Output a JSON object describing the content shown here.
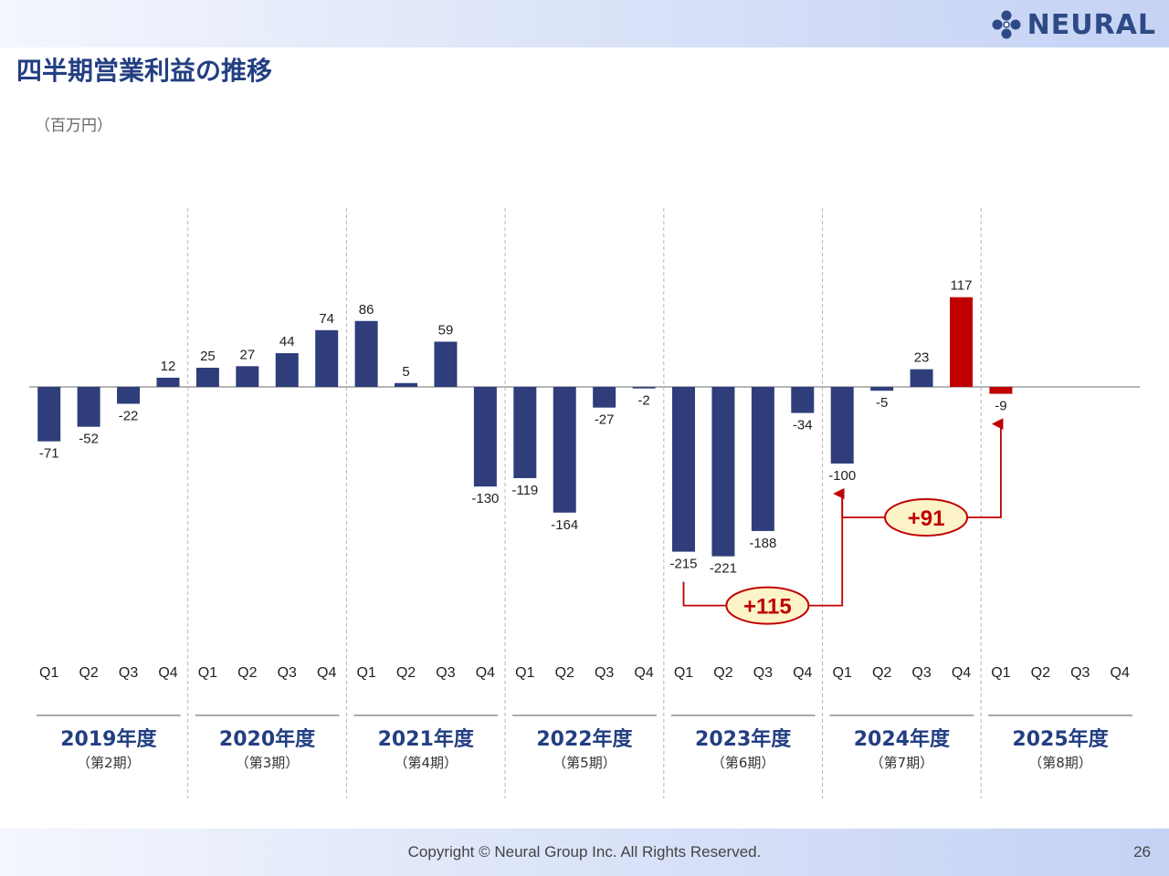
{
  "slide": {
    "title": "四半期営業利益の推移",
    "unit": "（百万円）",
    "logo_text": "NEURAL",
    "copyright": "Copyright © Neural Group Inc. All Rights Reserved.",
    "page_number": "26"
  },
  "colors": {
    "bar_default": "#2f3e7a",
    "bar_highlight": "#c00000",
    "title": "#233f82",
    "year_label": "#233f82",
    "callout_fill": "#fdf3c8",
    "callout_text": "#c00000",
    "callout_line": "#c00000"
  },
  "chart_data": {
    "type": "bar",
    "ylim": [
      -221,
      117
    ],
    "grid": false,
    "legend": "none",
    "quarter_labels": [
      "Q1",
      "Q2",
      "Q3",
      "Q4"
    ],
    "groups": [
      {
        "year": "2019年度",
        "period": "（第2期）",
        "values": [
          -71,
          -52,
          -22,
          12
        ],
        "highlight": []
      },
      {
        "year": "2020年度",
        "period": "（第3期）",
        "values": [
          25,
          27,
          44,
          74
        ],
        "highlight": []
      },
      {
        "year": "2021年度",
        "period": "（第4期）",
        "values": [
          86,
          5,
          59,
          -130
        ],
        "highlight": []
      },
      {
        "year": "2022年度",
        "period": "（第5期）",
        "values": [
          -119,
          -164,
          -27,
          -2
        ],
        "highlight": []
      },
      {
        "year": "2023年度",
        "period": "（第6期）",
        "values": [
          -215,
          -221,
          -188,
          -34
        ],
        "highlight": []
      },
      {
        "year": "2024年度",
        "period": "（第7期）",
        "values": [
          -100,
          -5,
          23,
          117
        ],
        "highlight": [
          3
        ]
      },
      {
        "year": "2025年度",
        "period": "（第8期）",
        "values": [
          -9,
          null,
          null,
          null
        ],
        "highlight": [
          0
        ]
      }
    ],
    "annotations": [
      {
        "label": "+115",
        "from": "2023年度 Q1",
        "to": "2024年度 Q1"
      },
      {
        "label": "+91",
        "from": "2024年度 Q1",
        "to": "2025年度 Q1"
      }
    ]
  }
}
